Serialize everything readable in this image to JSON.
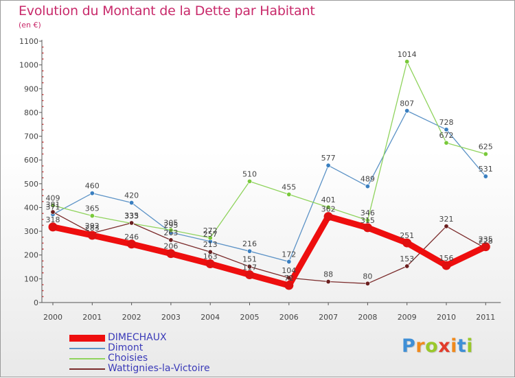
{
  "title": "Evolution du Montant de la Dette par Habitant",
  "unit": "(en €)",
  "logo": {
    "letters": [
      "P",
      "r",
      "o",
      "x",
      "i",
      "t",
      "i"
    ],
    "colors": [
      "#3f8fd6",
      "#f08a1d",
      "#9ac82b",
      "#e23b2b",
      "#f08a1d",
      "#3f8fd6",
      "#9ac82b"
    ]
  },
  "chart_data": {
    "type": "line",
    "x": [
      "2000",
      "2001",
      "2002",
      "2003",
      "2004",
      "2005",
      "2006",
      "2007",
      "2008",
      "2009",
      "2010",
      "2011"
    ],
    "ylim": [
      0,
      1100
    ],
    "yticks": [
      0,
      100,
      200,
      300,
      400,
      500,
      600,
      700,
      800,
      900,
      1000,
      1100
    ],
    "grid": false,
    "legend_position": "bottom-left",
    "series": [
      {
        "name": "DIMECHAUX",
        "color": "#ee0e0e",
        "marker": "#e01010",
        "width": 9,
        "values": [
          318,
          283,
          246,
          206,
          163,
          117,
          72,
          362,
          315,
          251,
          156,
          235
        ]
      },
      {
        "name": "Dimont",
        "color": "#5b92c6",
        "marker": "#3a7fc0",
        "width": 1.3,
        "values": [
          371,
          460,
          420,
          295,
          257,
          216,
          172,
          577,
          489,
          807,
          728,
          531
        ]
      },
      {
        "name": "Choisies",
        "color": "#8fd35c",
        "marker": "#79c93a",
        "width": 1.3,
        "values": [
          409,
          365,
          333,
          305,
          272,
          510,
          455,
          401,
          346,
          1014,
          672,
          625
        ]
      },
      {
        "name": "Wattignies-la-Victoire",
        "color": "#7a2a2a",
        "marker": "#6b1f1f",
        "width": 1.3,
        "values": [
          381,
          292,
          335,
          263,
          213,
          151,
          104,
          88,
          80,
          153,
          321,
          228
        ]
      }
    ]
  }
}
